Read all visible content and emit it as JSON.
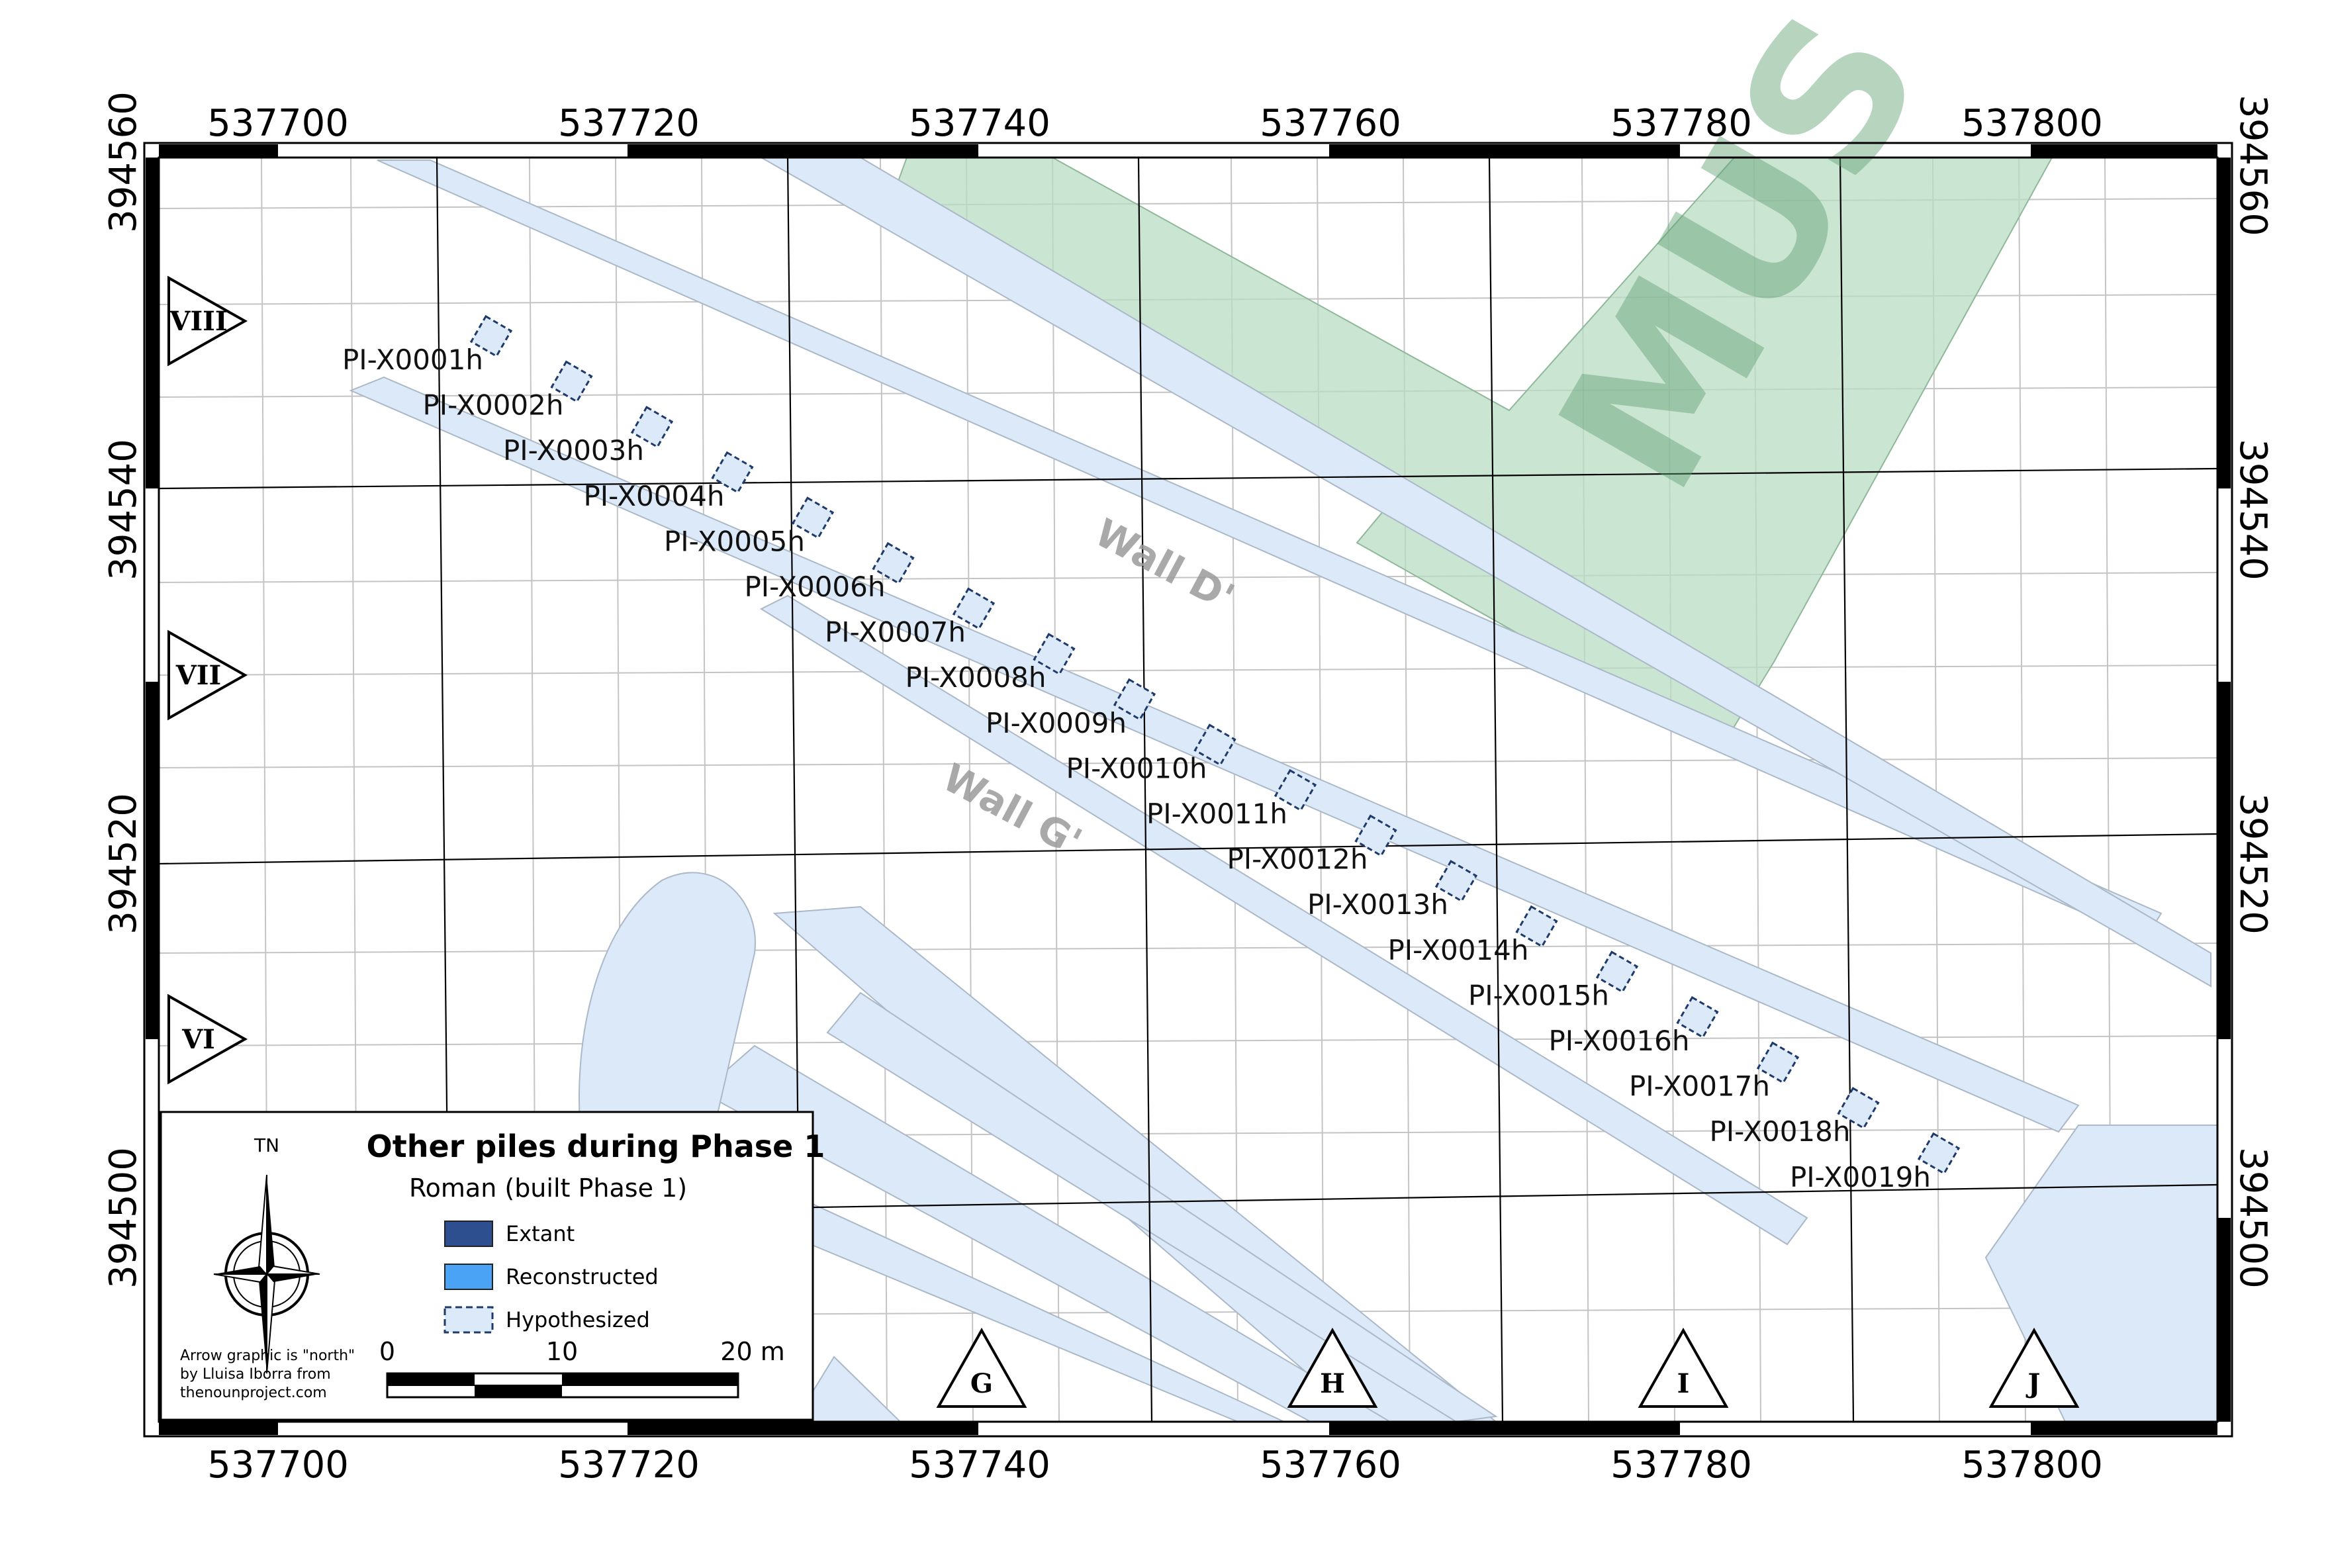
{
  "map": {
    "x_ticks": [
      "537700",
      "537720",
      "537740",
      "537760",
      "537780",
      "537800"
    ],
    "y_ticks": [
      "394560",
      "394540",
      "394520",
      "394500"
    ],
    "row_markers": [
      "VIII",
      "VII",
      "VI"
    ],
    "column_markers": [
      "G",
      "H",
      "I",
      "J"
    ],
    "wall_labels": [
      "Wall D'",
      "Wall G'"
    ],
    "museum_label": "MUS",
    "piles": [
      "PI-X0001h",
      "PI-X0002h",
      "PI-X0003h",
      "PI-X0004h",
      "PI-X0005h",
      "PI-X0006h",
      "PI-X0007h",
      "PI-X0008h",
      "PI-X0009h",
      "PI-X0010h",
      "PI-X0011h",
      "PI-X0012h",
      "PI-X0013h",
      "PI-X0014h",
      "PI-X0015h",
      "PI-X0016h",
      "PI-X0017h",
      "PI-X0018h",
      "PI-X0019h"
    ]
  },
  "legend": {
    "north_label": "TN",
    "title": "Other piles during Phase 1",
    "subtitle": "Roman (built Phase 1)",
    "items": [
      {
        "label": "Extant",
        "color": "#2e4f8f"
      },
      {
        "label": "Reconstructed",
        "color": "#4aa3f5"
      },
      {
        "label": "Hypothesized",
        "color": "#dce9f8"
      }
    ],
    "credit_lines": [
      "Arrow graphic is \"north\"",
      "by Lluisa Iborra from",
      "thenounproject.com"
    ],
    "scale_labels": [
      "0",
      "10",
      "20 m"
    ]
  },
  "colors": {
    "wall_fill": "#dce9f8",
    "museum_fill": "#b9dcc4",
    "frame": "#000000"
  }
}
